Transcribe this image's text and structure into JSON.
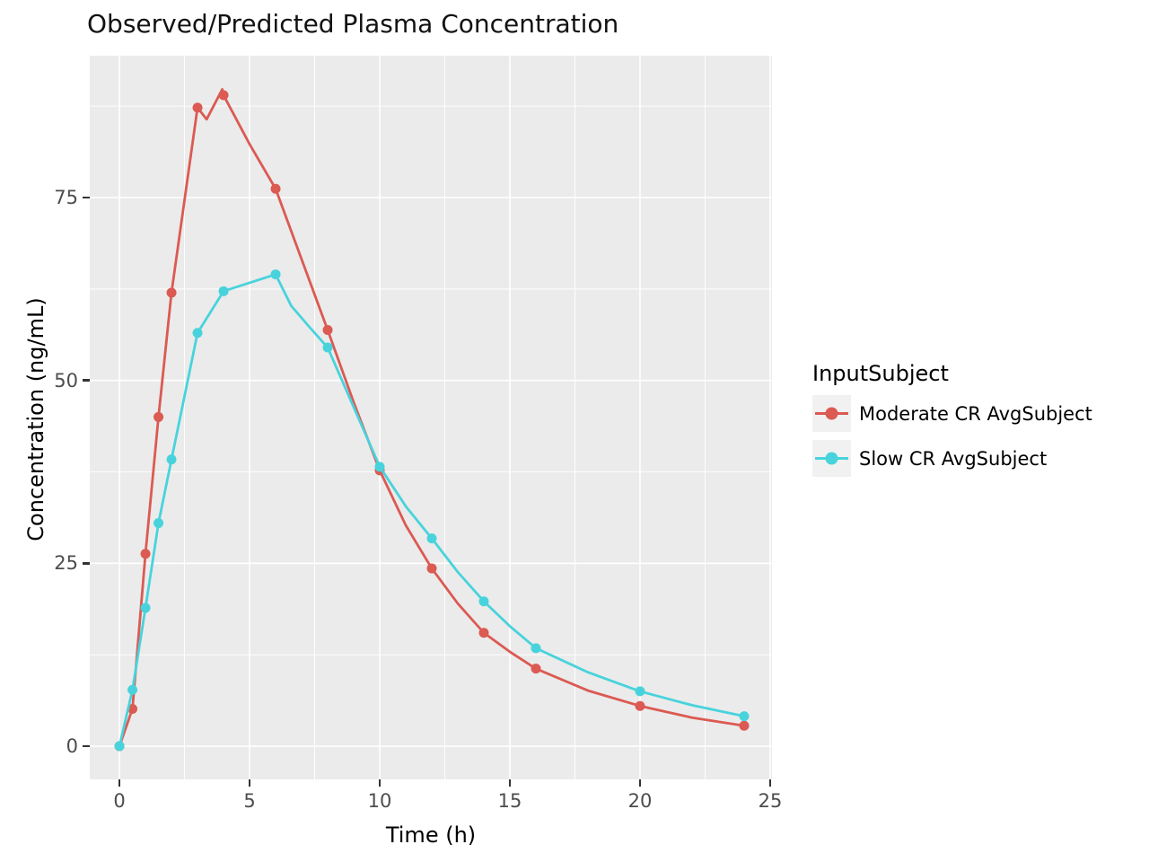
{
  "title": "Observed/Predicted Plasma Concentration",
  "chart_data": {
    "type": "line",
    "title": "Observed/Predicted Plasma Concentration",
    "xlabel": "Time (h)",
    "ylabel": "Concentration (ng/mL)",
    "legend_title": "InputSubject",
    "legend_position": "right",
    "panel_background": "#EBEBEB",
    "grid_color": "#FFFFFF",
    "grid": "major and minor, white on gray panel",
    "tick_label_color": "#4D4D4D",
    "xlim": [
      -1.14,
      25.07
    ],
    "ylim": [
      -4.54,
      94.4
    ],
    "x_ticks": [
      0,
      5,
      10,
      15,
      20,
      25
    ],
    "y_ticks": [
      0,
      25,
      50,
      75
    ],
    "x_minor_ticks": [
      2.5,
      7.5,
      12.5,
      17.5,
      22.5
    ],
    "y_minor_ticks": [
      12.5,
      37.5,
      62.5,
      87.5
    ],
    "x": [
      0,
      0.5,
      1,
      1.5,
      2,
      3,
      4,
      6,
      8,
      10,
      12,
      14,
      16,
      20,
      24
    ],
    "series": [
      {
        "name": "Moderate CR AvgSubject",
        "color": "#DB5A52",
        "values": [
          0,
          5.1,
          26.3,
          45.0,
          62.0,
          87.3,
          89.0,
          76.2,
          56.9,
          37.7,
          24.3,
          15.5,
          10.6,
          5.5,
          2.8
        ],
        "line_extra_vertices": [
          {
            "x": 3.35,
            "y": 85.7
          },
          {
            "x": 3.95,
            "y": 89.8
          },
          {
            "x": 5.0,
            "y": 82.3
          },
          {
            "x": 9.0,
            "y": 47.0
          },
          {
            "x": 11.0,
            "y": 30.2
          },
          {
            "x": 13.0,
            "y": 19.5
          },
          {
            "x": 15.0,
            "y": 12.9
          },
          {
            "x": 18.0,
            "y": 7.6
          },
          {
            "x": 22.0,
            "y": 3.9
          }
        ]
      },
      {
        "name": "Slow CR AvgSubject",
        "color": "#48D3DC",
        "values": [
          0,
          7.7,
          18.9,
          30.5,
          39.2,
          56.5,
          62.2,
          64.5,
          54.5,
          38.2,
          28.4,
          19.8,
          13.4,
          7.5,
          4.1
        ],
        "line_extra_vertices": [
          {
            "x": 6.6,
            "y": 60.2
          },
          {
            "x": 7.3,
            "y": 57.3
          },
          {
            "x": 11.0,
            "y": 32.8
          },
          {
            "x": 13.0,
            "y": 23.8
          },
          {
            "x": 15.0,
            "y": 16.4
          },
          {
            "x": 18.0,
            "y": 10.1
          },
          {
            "x": 22.0,
            "y": 5.6
          }
        ]
      }
    ]
  }
}
